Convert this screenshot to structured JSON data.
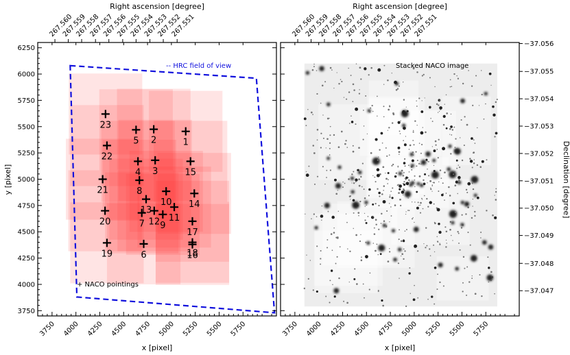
{
  "chart_data": [
    {
      "type": "scatter",
      "panel": "left",
      "xlabel": "x [pixel]",
      "ylabel": "y [pixel]",
      "top_xlabel": "Right ascension [degree]",
      "xlim": [
        3600,
        6100
      ],
      "ylim": [
        3700,
        6300
      ],
      "x_ticks": [
        3750,
        4000,
        4250,
        4500,
        4750,
        5000,
        5250,
        5500,
        5750
      ],
      "y_ticks": [
        3750,
        4000,
        4250,
        4500,
        4750,
        5000,
        5250,
        5500,
        5750,
        6000,
        6250
      ],
      "ra_ticks": [
        "267.560",
        "267.559",
        "267.558",
        "267.557",
        "267.556",
        "267.555",
        "267.554",
        "267.553",
        "267.552",
        "267.551"
      ],
      "ra_tick_x": [
        3780,
        3920,
        4060,
        4205,
        4345,
        4490,
        4630,
        4775,
        4915,
        5060
      ],
      "legend_pointings": "+ NACO pointings",
      "legend_fov": "-- HRC field of view",
      "hrc_fov": [
        [
          3940,
          6080
        ],
        [
          5890,
          5960
        ],
        [
          6080,
          3730
        ],
        [
          4010,
          3880
        ]
      ],
      "pointings": [
        {
          "label": "1",
          "x": 5150,
          "y": 5455
        },
        {
          "label": "2",
          "x": 4815,
          "y": 5475
        },
        {
          "label": "3",
          "x": 4830,
          "y": 5180
        },
        {
          "label": "4",
          "x": 4650,
          "y": 5170
        },
        {
          "label": "5",
          "x": 4630,
          "y": 5470
        },
        {
          "label": "6",
          "x": 4710,
          "y": 4385
        },
        {
          "label": "7",
          "x": 4690,
          "y": 4680
        },
        {
          "label": "8",
          "x": 4665,
          "y": 4990
        },
        {
          "label": "9",
          "x": 4910,
          "y": 4665
        },
        {
          "label": "10",
          "x": 4945,
          "y": 4885
        },
        {
          "label": "11",
          "x": 5030,
          "y": 4735
        },
        {
          "label": "12",
          "x": 4820,
          "y": 4700
        },
        {
          "label": "13",
          "x": 4735,
          "y": 4810
        },
        {
          "label": "14",
          "x": 5240,
          "y": 4865
        },
        {
          "label": "15",
          "x": 5200,
          "y": 5170
        },
        {
          "label": "16",
          "x": 5220,
          "y": 4380
        },
        {
          "label": "17",
          "x": 5220,
          "y": 4600
        },
        {
          "label": "18",
          "x": 5220,
          "y": 4400
        },
        {
          "label": "19",
          "x": 4325,
          "y": 4395
        },
        {
          "label": "20",
          "x": 4305,
          "y": 4700
        },
        {
          "label": "21",
          "x": 4280,
          "y": 5000
        },
        {
          "label": "22",
          "x": 4325,
          "y": 5320
        },
        {
          "label": "23",
          "x": 4310,
          "y": 5620
        }
      ]
    },
    {
      "type": "image",
      "panel": "right",
      "title": "Stacked NACO image",
      "xlabel": "x [pixel]",
      "top_xlabel": "Right ascension [degree]",
      "right_ylabel": "Declination [degree]",
      "xlim": [
        3600,
        6100
      ],
      "ylim": [
        3700,
        6300
      ],
      "x_ticks": [
        3750,
        4000,
        4250,
        4500,
        4750,
        5000,
        5250,
        5500,
        5750
      ],
      "ra_ticks": [
        "267.560",
        "267.559",
        "267.558",
        "267.557",
        "267.556",
        "267.555",
        "267.554",
        "267.553",
        "267.552",
        "267.551"
      ],
      "dec_ticks": [
        "−37.056",
        "−37.055",
        "−37.054",
        "−37.053",
        "−37.052",
        "−37.051",
        "−37.050",
        "−37.049",
        "−37.048",
        "−37.047"
      ],
      "dec_tick_y": [
        6290,
        6025,
        5765,
        5505,
        5245,
        4985,
        4725,
        4465,
        4200,
        3940
      ]
    }
  ]
}
